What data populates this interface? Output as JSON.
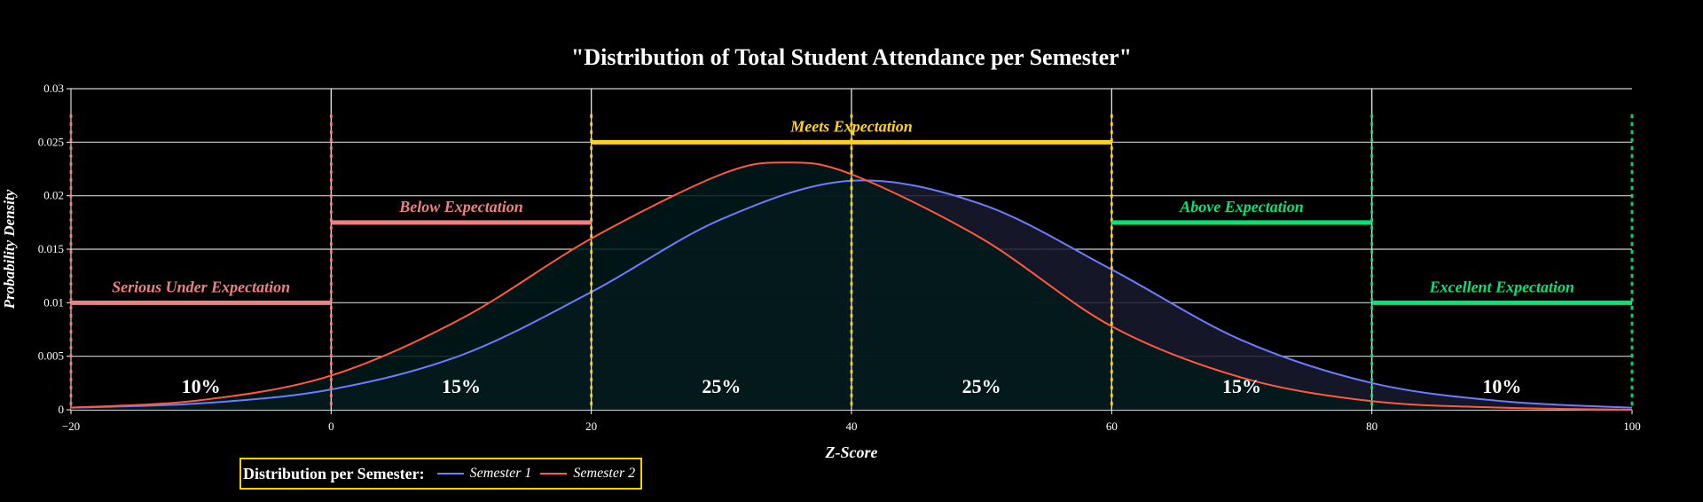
{
  "chart_data": {
    "type": "line",
    "title": "\"Distribution of Total Student Attendance per Semester\"",
    "xlabel": "Z-Score",
    "ylabel": "Probability Density",
    "xlim": [
      -20,
      100
    ],
    "ylim": [
      0,
      0.03
    ],
    "x_ticks": [
      "-20",
      "0",
      "20",
      "40",
      "60",
      "80",
      "100"
    ],
    "y_ticks": [
      "0",
      "0.005",
      "0.01",
      "0.015",
      "0.02",
      "0.025",
      "0.03"
    ],
    "grid": "horizontal",
    "legend": {
      "title": "Distribution per Semester",
      "placement": "bottom-left"
    },
    "series": [
      {
        "name": "Semester 1",
        "color": "#6c7cff",
        "fill": "#1a1a30",
        "x": [
          -20,
          -10,
          0,
          10,
          20,
          30,
          40,
          50,
          60,
          70,
          80,
          90,
          100
        ],
        "y": [
          0.0002,
          0.0006,
          0.0019,
          0.0051,
          0.011,
          0.0178,
          0.0214,
          0.0192,
          0.0131,
          0.0065,
          0.0025,
          0.0008,
          0.0002
        ]
      },
      {
        "name": "Semester 2",
        "color": "#ff5a3c",
        "fill": "#001a1a",
        "x": [
          -20,
          -10,
          0,
          10,
          20,
          30,
          35,
          40,
          50,
          60,
          70,
          80,
          90,
          100
        ],
        "y": [
          0.0002,
          0.0009,
          0.0032,
          0.0085,
          0.016,
          0.022,
          0.0231,
          0.022,
          0.016,
          0.0078,
          0.003,
          0.0008,
          0.0002,
          0.0
        ]
      }
    ],
    "bands": [
      {
        "label": "Serious Under Expectation",
        "x0": -20,
        "x1": 0,
        "y": 0.01,
        "color": "#f08080",
        "percent": "10%"
      },
      {
        "label": "Below Expectation",
        "x0": 0,
        "x1": 20,
        "y": 0.0175,
        "color": "#f08080",
        "percent": "15%"
      },
      {
        "label": "Meets Expectation",
        "x0": 20,
        "x1": 60,
        "y": 0.025,
        "color": "#ffd21f",
        "percent": ""
      },
      {
        "label": "Above Expectation",
        "x0": 60,
        "x1": 80,
        "y": 0.0175,
        "color": "#00e676",
        "percent": "15%"
      },
      {
        "label": "Excellent Expectation",
        "x0": 80,
        "x1": 100,
        "y": 0.01,
        "color": "#00e676",
        "percent": "10%"
      }
    ],
    "inner_labels": [
      {
        "text": "25%",
        "x": 30
      },
      {
        "text": "25%",
        "x": 50
      }
    ],
    "dotted_lines": [
      {
        "x": -20,
        "color": "#f08080"
      },
      {
        "x": 0,
        "color": "#f08080"
      },
      {
        "x": 20,
        "color": "#ffd21f"
      },
      {
        "x": 40,
        "color": "#ffd21f"
      },
      {
        "x": 60,
        "color": "#ffd21f"
      },
      {
        "x": 80,
        "color": "#00e676"
      },
      {
        "x": 100,
        "color": "#00e676"
      }
    ],
    "solid_vlines": [
      0,
      20,
      40,
      60,
      80
    ]
  }
}
